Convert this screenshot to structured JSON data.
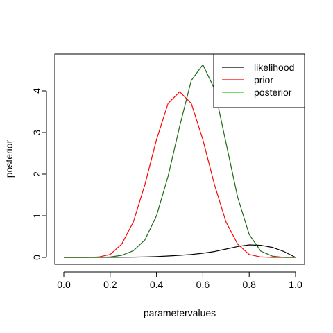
{
  "chart_data": {
    "type": "line",
    "title": "",
    "xlabel": "parametervalues",
    "ylabel": "posterior",
    "xlim": [
      0,
      1
    ],
    "ylim": [
      0,
      4.65
    ],
    "xticks": [
      "0.0",
      "0.2",
      "0.4",
      "0.6",
      "0.8",
      "1.0"
    ],
    "yticks": [
      "0",
      "1",
      "2",
      "3",
      "4"
    ],
    "legend_position": "top-right",
    "series": [
      {
        "name": "likelihood",
        "color": "#000000",
        "x": [
          0,
          0.05,
          0.1,
          0.15,
          0.2,
          0.25,
          0.3,
          0.35,
          0.4,
          0.45,
          0.5,
          0.55,
          0.6,
          0.65,
          0.7,
          0.75,
          0.8,
          0.85,
          0.9,
          0.95,
          1.0
        ],
        "y": [
          0,
          0,
          0,
          0,
          0.001,
          0.003,
          0.006,
          0.011,
          0.02,
          0.033,
          0.05,
          0.07,
          0.1,
          0.14,
          0.2,
          0.26,
          0.3,
          0.29,
          0.24,
          0.14,
          0
        ]
      },
      {
        "name": "prior",
        "color": "#ff0000",
        "x": [
          0,
          0.05,
          0.1,
          0.15,
          0.2,
          0.25,
          0.3,
          0.35,
          0.4,
          0.45,
          0.5,
          0.55,
          0.6,
          0.65,
          0.7,
          0.75,
          0.8,
          0.85,
          0.9,
          0.95,
          1.0
        ],
        "y": [
          0,
          0,
          0,
          0.01,
          0.07,
          0.32,
          0.85,
          1.75,
          2.83,
          3.7,
          3.98,
          3.7,
          2.83,
          1.75,
          0.85,
          0.32,
          0.07,
          0.01,
          0,
          0,
          0
        ]
      },
      {
        "name": "posterior",
        "color": "#1a6b12",
        "x": [
          0,
          0.05,
          0.1,
          0.15,
          0.2,
          0.25,
          0.3,
          0.35,
          0.4,
          0.45,
          0.5,
          0.55,
          0.6,
          0.65,
          0.7,
          0.75,
          0.8,
          0.85,
          0.9,
          0.95,
          1.0
        ],
        "y": [
          0,
          0,
          0,
          0,
          0.01,
          0.05,
          0.16,
          0.42,
          1.0,
          1.95,
          3.15,
          4.25,
          4.63,
          4.05,
          2.75,
          1.45,
          0.55,
          0.15,
          0.03,
          0,
          0
        ]
      }
    ],
    "legend": {
      "line_colors": [
        "#000000",
        "#ff0000",
        "#22cc22"
      ]
    }
  }
}
